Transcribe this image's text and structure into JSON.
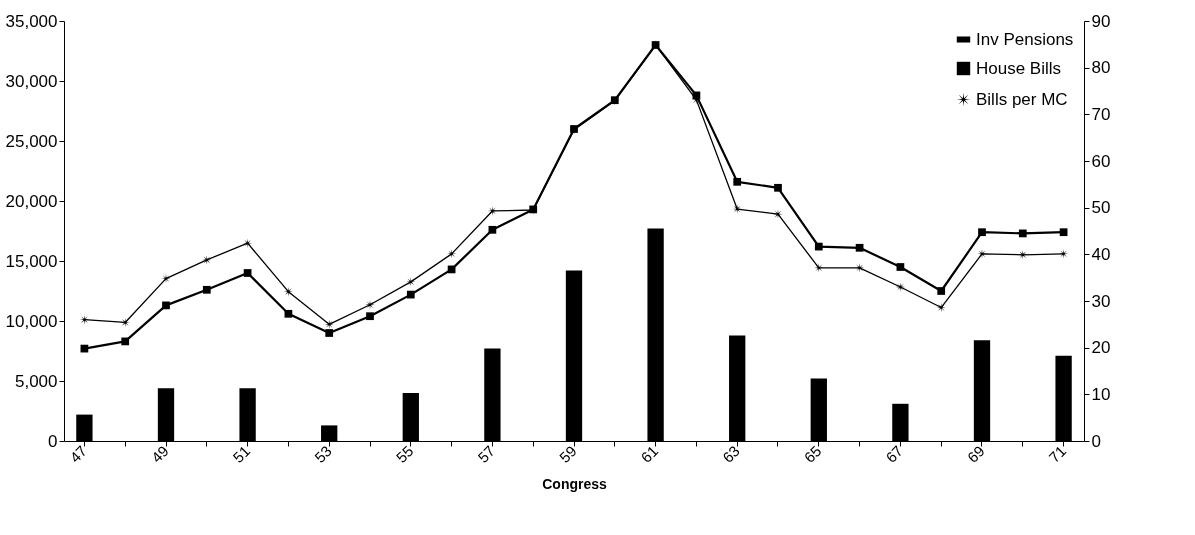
{
  "chart_data": {
    "type": "bar",
    "xlabel": "Congress",
    "categories": [
      "47",
      null,
      "49",
      null,
      "51",
      null,
      "53",
      null,
      "55",
      null,
      "57",
      null,
      "59",
      null,
      "61",
      null,
      "63",
      null,
      "65",
      null,
      "67",
      null,
      "69",
      null,
      "71"
    ],
    "series": [
      {
        "name": "Inv Pensions",
        "color": "#000000",
        "values": [
          2200,
          null,
          4400,
          null,
          4400,
          null,
          1300,
          null,
          4000,
          null,
          7700,
          null,
          14200,
          null,
          17700,
          null,
          8800,
          null,
          5200,
          null,
          3100,
          null,
          8400,
          null,
          7100
        ]
      },
      {
        "name": "House Bills",
        "type": "line",
        "marker": "square",
        "color": "#000000",
        "values": [
          7700,
          8300,
          11300,
          12600,
          14000,
          10600,
          9000,
          10400,
          12200,
          14300,
          17600,
          19300,
          26000,
          28400,
          33000,
          28800,
          21600,
          21100,
          16200,
          16100,
          14500,
          12500,
          17400,
          17300,
          17400
        ]
      },
      {
        "name": "Bills per MC",
        "type": "line",
        "marker": "star",
        "axis": "y2",
        "color": "#000000",
        "values": [
          26,
          25.4,
          34.8,
          38.8,
          42.4,
          32,
          25,
          29.2,
          34.1,
          40.1,
          49.3,
          49.5,
          66.7,
          72.9,
          84.9,
          73.1,
          49.7,
          48.6,
          37.1,
          37.1,
          33,
          28.6,
          40.1,
          39.9,
          40.1
        ]
      }
    ],
    "ylim": [
      0,
      35000
    ],
    "yticks": [
      0,
      {
        "value": 5000,
        "label": "5,000"
      },
      {
        "value": 10000,
        "label": "10,000"
      },
      {
        "value": 15000,
        "label": "15,000"
      },
      {
        "value": 20000,
        "label": "20,000"
      },
      {
        "value": 25000,
        "label": "25,000"
      },
      {
        "value": 30000,
        "label": "30,000"
      },
      {
        "value": 35000,
        "label": "35,000"
      }
    ],
    "y2lim": [
      0,
      90
    ],
    "y2ticks": [
      0,
      10,
      20,
      30,
      40,
      50,
      60,
      70,
      80,
      90
    ],
    "grid": false,
    "legend": "top right"
  }
}
